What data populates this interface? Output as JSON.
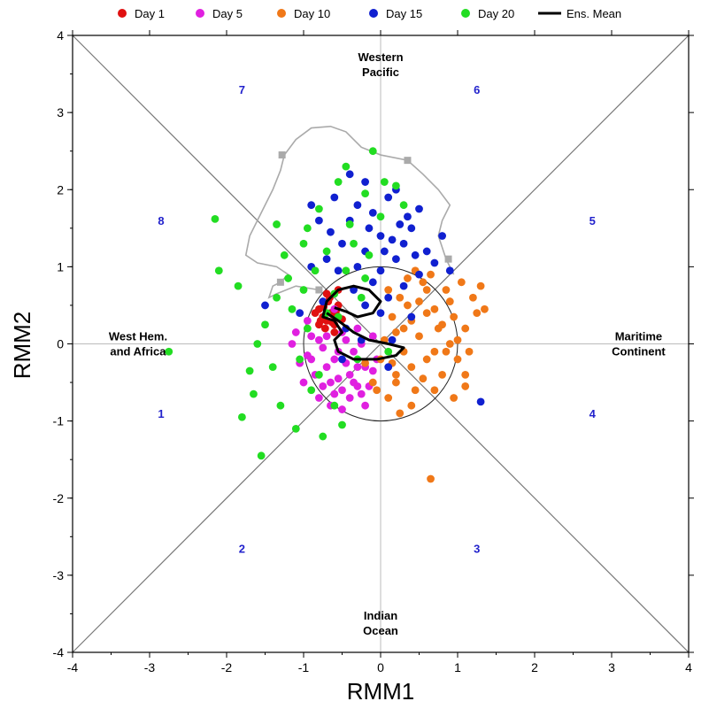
{
  "chart_data": {
    "type": "scatter",
    "xlabel": "RMM1",
    "ylabel": "RMM2",
    "xlim": [
      -4,
      4
    ],
    "ylim": [
      -4,
      4
    ],
    "x_ticks": [
      -4,
      -3,
      -2,
      -1,
      0,
      1,
      2,
      3,
      4
    ],
    "y_ticks": [
      -4,
      -3,
      -2,
      -1,
      0,
      1,
      2,
      3,
      4
    ],
    "legend_position": "top",
    "unit_circle_radius": 1,
    "region_labels": [
      {
        "lines": [
          "Western",
          "Pacific"
        ],
        "x": 0.0,
        "y": 3.62
      },
      {
        "lines": [
          "Indian",
          "Ocean"
        ],
        "x": 0.0,
        "y": -3.62
      },
      {
        "lines": [
          "West Hem.",
          "and Africa"
        ],
        "x": -3.15,
        "y": 0.0
      },
      {
        "lines": [
          "Maritime",
          "Continent"
        ],
        "x": 3.35,
        "y": 0.0
      }
    ],
    "phase_labels": [
      {
        "text": "1",
        "x": -2.85,
        "y": -0.9
      },
      {
        "text": "2",
        "x": -1.8,
        "y": -2.65
      },
      {
        "text": "3",
        "x": 1.25,
        "y": -2.65
      },
      {
        "text": "4",
        "x": 2.75,
        "y": -0.9
      },
      {
        "text": "5",
        "x": 2.75,
        "y": 1.6
      },
      {
        "text": "6",
        "x": 1.25,
        "y": 3.3
      },
      {
        "text": "7",
        "x": -1.8,
        "y": 3.3
      },
      {
        "text": "8",
        "x": -2.85,
        "y": 1.6
      }
    ],
    "series": [
      {
        "name": "Day 1",
        "color": "#e01010",
        "marker": "circle",
        "points": [
          [
            -0.7,
            0.3
          ],
          [
            -0.65,
            0.4
          ],
          [
            -0.75,
            0.35
          ],
          [
            -0.6,
            0.25
          ],
          [
            -0.8,
            0.45
          ],
          [
            -0.55,
            0.5
          ],
          [
            -0.72,
            0.2
          ],
          [
            -0.68,
            0.55
          ],
          [
            -0.62,
            0.38
          ],
          [
            -0.78,
            0.3
          ],
          [
            -0.58,
            0.42
          ],
          [
            -0.85,
            0.4
          ],
          [
            -0.66,
            0.6
          ],
          [
            -0.74,
            0.48
          ],
          [
            -0.5,
            0.32
          ],
          [
            -0.63,
            0.28
          ],
          [
            -0.7,
            0.65
          ],
          [
            -0.55,
            0.7
          ],
          [
            -0.8,
            0.25
          ],
          [
            -0.6,
            0.15
          ]
        ]
      },
      {
        "name": "Day 5",
        "color": "#e020e0",
        "marker": "circle",
        "points": [
          [
            -0.9,
            0.1
          ],
          [
            -0.6,
            -0.2
          ],
          [
            -0.4,
            -0.4
          ],
          [
            -0.7,
            -0.3
          ],
          [
            -0.3,
            -0.55
          ],
          [
            -0.5,
            -0.6
          ],
          [
            -0.95,
            -0.15
          ],
          [
            -0.2,
            -0.3
          ],
          [
            -0.35,
            -0.1
          ],
          [
            -0.8,
            0.05
          ],
          [
            -0.55,
            -0.45
          ],
          [
            -0.25,
            -0.65
          ],
          [
            -0.65,
            -0.5
          ],
          [
            -0.45,
            -0.25
          ],
          [
            -0.1,
            -0.35
          ],
          [
            -0.75,
            -0.05
          ],
          [
            -0.3,
            0.2
          ],
          [
            -0.5,
            0.15
          ],
          [
            -1.0,
            -0.5
          ],
          [
            -0.6,
            -0.65
          ],
          [
            -0.4,
            -0.7
          ],
          [
            -0.85,
            -0.4
          ],
          [
            -1.15,
            0.0
          ],
          [
            -1.1,
            0.15
          ],
          [
            -0.2,
            -0.8
          ],
          [
            -0.7,
            0.1
          ],
          [
            -0.45,
            0.05
          ],
          [
            -0.95,
            0.3
          ],
          [
            -0.25,
            0.0
          ],
          [
            -0.55,
            -0.1
          ],
          [
            -0.35,
            -0.5
          ],
          [
            -0.15,
            -0.55
          ],
          [
            -0.05,
            -0.2
          ],
          [
            -0.8,
            -0.7
          ],
          [
            -1.05,
            -0.25
          ],
          [
            -0.65,
            -0.8
          ],
          [
            -0.3,
            -0.3
          ],
          [
            -0.6,
            0.45
          ],
          [
            -0.1,
            0.1
          ],
          [
            -0.9,
            -0.2
          ],
          [
            -0.5,
            -0.85
          ],
          [
            -0.75,
            -0.55
          ]
        ]
      },
      {
        "name": "Day 10",
        "color": "#f07818",
        "marker": "circle",
        "points": [
          [
            0.3,
            0.2
          ],
          [
            0.5,
            0.1
          ],
          [
            0.7,
            -0.1
          ],
          [
            0.9,
            0.0
          ],
          [
            1.1,
            0.2
          ],
          [
            0.6,
            0.4
          ],
          [
            0.4,
            -0.3
          ],
          [
            0.2,
            -0.5
          ],
          [
            0.8,
            -0.4
          ],
          [
            1.0,
            -0.2
          ],
          [
            1.2,
            0.6
          ],
          [
            0.85,
            0.7
          ],
          [
            0.55,
            0.8
          ],
          [
            0.35,
            0.5
          ],
          [
            0.15,
            0.35
          ],
          [
            0.0,
            -0.2
          ],
          [
            -0.1,
            -0.5
          ],
          [
            0.1,
            -0.7
          ],
          [
            0.4,
            -0.8
          ],
          [
            0.7,
            -0.6
          ],
          [
            1.1,
            -0.55
          ],
          [
            0.95,
            0.35
          ],
          [
            1.25,
            0.4
          ],
          [
            0.25,
            0.6
          ],
          [
            0.45,
            0.95
          ],
          [
            0.65,
            0.9
          ],
          [
            1.05,
            0.8
          ],
          [
            0.75,
            0.2
          ],
          [
            0.05,
            0.05
          ],
          [
            0.15,
            -0.25
          ],
          [
            0.6,
            -0.2
          ],
          [
            0.9,
            0.55
          ],
          [
            1.35,
            0.45
          ],
          [
            1.3,
            0.75
          ],
          [
            0.3,
            -0.1
          ],
          [
            0.5,
            0.55
          ],
          [
            0.2,
            0.15
          ],
          [
            -0.05,
            -0.6
          ],
          [
            0.25,
            -0.9
          ],
          [
            0.55,
            -0.45
          ],
          [
            0.8,
            0.25
          ],
          [
            1.0,
            0.05
          ],
          [
            1.15,
            -0.1
          ],
          [
            0.65,
            -1.75
          ],
          [
            0.35,
            0.85
          ],
          [
            0.1,
            0.7
          ],
          [
            -0.2,
            -0.25
          ],
          [
            0.45,
            -0.6
          ],
          [
            0.85,
            -0.1
          ],
          [
            0.7,
            0.45
          ],
          [
            1.1,
            -0.4
          ],
          [
            0.95,
            -0.7
          ],
          [
            0.4,
            0.3
          ],
          [
            0.6,
            0.7
          ],
          [
            0.2,
            -0.4
          ]
        ]
      },
      {
        "name": "Day 15",
        "color": "#1020d0",
        "marker": "circle",
        "points": [
          [
            -0.2,
            1.2
          ],
          [
            0.0,
            1.4
          ],
          [
            0.2,
            1.1
          ],
          [
            -0.4,
            1.6
          ],
          [
            0.1,
            1.9
          ],
          [
            -0.1,
            1.7
          ],
          [
            0.4,
            1.5
          ],
          [
            -0.6,
            1.9
          ],
          [
            -0.3,
            1.8
          ],
          [
            0.3,
            1.3
          ],
          [
            0.6,
            1.2
          ],
          [
            -0.5,
            1.3
          ],
          [
            -0.8,
            1.6
          ],
          [
            -0.2,
            2.1
          ],
          [
            0.2,
            2.0
          ],
          [
            -0.7,
            1.1
          ],
          [
            0.5,
            0.9
          ],
          [
            0.8,
            1.4
          ],
          [
            0.9,
            0.95
          ],
          [
            0.1,
            0.6
          ],
          [
            -0.1,
            0.8
          ],
          [
            -0.35,
            0.7
          ],
          [
            0.3,
            0.75
          ],
          [
            -0.55,
            0.95
          ],
          [
            0.0,
            0.4
          ],
          [
            -0.45,
            0.2
          ],
          [
            0.15,
            0.05
          ],
          [
            -0.25,
            0.05
          ],
          [
            0.4,
            0.35
          ],
          [
            -0.9,
            1.0
          ],
          [
            -0.15,
            1.5
          ],
          [
            0.05,
            1.2
          ],
          [
            0.35,
            1.65
          ],
          [
            -0.65,
            1.45
          ],
          [
            -0.4,
            2.2
          ],
          [
            0.5,
            1.75
          ],
          [
            -0.9,
            1.8
          ],
          [
            0.25,
            1.55
          ],
          [
            -0.3,
            1.0
          ],
          [
            0.7,
            1.05
          ],
          [
            1.3,
            -0.75
          ],
          [
            -1.5,
            0.5
          ],
          [
            0.1,
            -0.3
          ],
          [
            -0.5,
            -0.2
          ],
          [
            -0.75,
            0.55
          ],
          [
            -1.05,
            0.4
          ],
          [
            0.0,
            0.95
          ],
          [
            0.45,
            1.15
          ],
          [
            -0.2,
            0.5
          ],
          [
            0.15,
            1.35
          ]
        ]
      },
      {
        "name": "Day 20",
        "color": "#22dd22",
        "marker": "circle",
        "points": [
          [
            -2.15,
            1.62
          ],
          [
            -2.1,
            0.95
          ],
          [
            -1.85,
            0.75
          ],
          [
            -2.75,
            -0.1
          ],
          [
            -1.7,
            -0.35
          ],
          [
            -1.8,
            -0.95
          ],
          [
            -1.55,
            -1.45
          ],
          [
            -1.65,
            -0.65
          ],
          [
            -1.35,
            0.6
          ],
          [
            -1.2,
            0.85
          ],
          [
            -1.0,
            1.3
          ],
          [
            -0.8,
            1.75
          ],
          [
            -0.55,
            2.1
          ],
          [
            -0.4,
            1.55
          ],
          [
            -0.1,
            2.5
          ],
          [
            -0.45,
            2.3
          ],
          [
            -0.2,
            1.95
          ],
          [
            0.0,
            1.65
          ],
          [
            0.3,
            1.8
          ],
          [
            -0.7,
            1.2
          ],
          [
            -1.1,
            -1.1
          ],
          [
            -1.3,
            -0.8
          ],
          [
            -1.5,
            0.25
          ],
          [
            -0.9,
            -0.6
          ],
          [
            -0.6,
            -0.8
          ],
          [
            -0.5,
            -1.05
          ],
          [
            -0.2,
            0.85
          ],
          [
            0.05,
            2.1
          ],
          [
            0.2,
            2.05
          ],
          [
            -0.95,
            1.5
          ],
          [
            -1.25,
            1.15
          ],
          [
            -0.85,
            0.95
          ],
          [
            -0.35,
            1.3
          ],
          [
            -0.6,
            0.65
          ],
          [
            -1.15,
            0.45
          ],
          [
            -1.05,
            -0.2
          ],
          [
            -0.8,
            -0.4
          ],
          [
            -0.3,
            -0.2
          ],
          [
            0.1,
            -0.1
          ],
          [
            -0.55,
            0.35
          ],
          [
            -0.25,
            0.6
          ],
          [
            -0.45,
            0.95
          ],
          [
            -1.4,
            -0.3
          ],
          [
            -0.95,
            0.2
          ],
          [
            -1.6,
            0.0
          ],
          [
            -0.75,
            -1.2
          ],
          [
            -1.35,
            1.55
          ],
          [
            -0.15,
            1.15
          ],
          [
            -1.0,
            0.7
          ],
          [
            -0.7,
            0.4
          ]
        ]
      }
    ],
    "ens_mean": {
      "name": "Ens. Mean",
      "color": "#000000",
      "points": [
        [
          -0.7,
          0.4
        ],
        [
          -0.55,
          0.3
        ],
        [
          -0.35,
          0.15
        ],
        [
          -0.15,
          0.05
        ],
        [
          0.1,
          0.0
        ],
        [
          0.3,
          -0.05
        ],
        [
          0.2,
          -0.15
        ],
        [
          -0.05,
          -0.2
        ],
        [
          -0.35,
          -0.2
        ],
        [
          -0.55,
          -0.1
        ],
        [
          -0.6,
          0.05
        ],
        [
          -0.5,
          0.15
        ],
        [
          -0.6,
          0.3
        ],
        [
          -0.75,
          0.35
        ],
        [
          -0.7,
          0.55
        ],
        [
          -0.55,
          0.7
        ],
        [
          -0.35,
          0.75
        ],
        [
          -0.15,
          0.7
        ],
        [
          0.0,
          0.55
        ],
        [
          -0.1,
          0.4
        ],
        [
          -0.3,
          0.35
        ],
        [
          -0.45,
          0.42
        ],
        [
          -0.6,
          0.47
        ]
      ]
    },
    "reference_path": {
      "color": "#aaaaaa",
      "points": [
        [
          -0.8,
          0.7
        ],
        [
          -1.1,
          0.75
        ],
        [
          -1.35,
          0.65
        ],
        [
          -1.45,
          0.6
        ],
        [
          -1.4,
          0.75
        ],
        [
          -1.3,
          0.8
        ],
        [
          -1.2,
          0.9
        ],
        [
          -1.35,
          1.0
        ],
        [
          -1.6,
          1.05
        ],
        [
          -1.75,
          1.15
        ],
        [
          -1.7,
          1.4
        ],
        [
          -1.55,
          1.7
        ],
        [
          -1.4,
          2.0
        ],
        [
          -1.3,
          2.25
        ],
        [
          -1.25,
          2.45
        ],
        [
          -1.1,
          2.65
        ],
        [
          -0.9,
          2.8
        ],
        [
          -0.65,
          2.82
        ],
        [
          -0.45,
          2.75
        ],
        [
          -0.25,
          2.55
        ],
        [
          0.0,
          2.45
        ],
        [
          0.35,
          2.38
        ],
        [
          0.55,
          2.2
        ],
        [
          0.75,
          2.0
        ],
        [
          0.9,
          1.8
        ],
        [
          0.8,
          1.6
        ],
        [
          0.75,
          1.4
        ],
        [
          0.85,
          1.1
        ],
        [
          0.95,
          0.9
        ]
      ],
      "markers": [
        [
          -1.28,
          2.45
        ],
        [
          0.35,
          2.38
        ],
        [
          0.88,
          1.1
        ],
        [
          -1.3,
          0.8
        ],
        [
          -0.8,
          0.7
        ]
      ]
    }
  }
}
